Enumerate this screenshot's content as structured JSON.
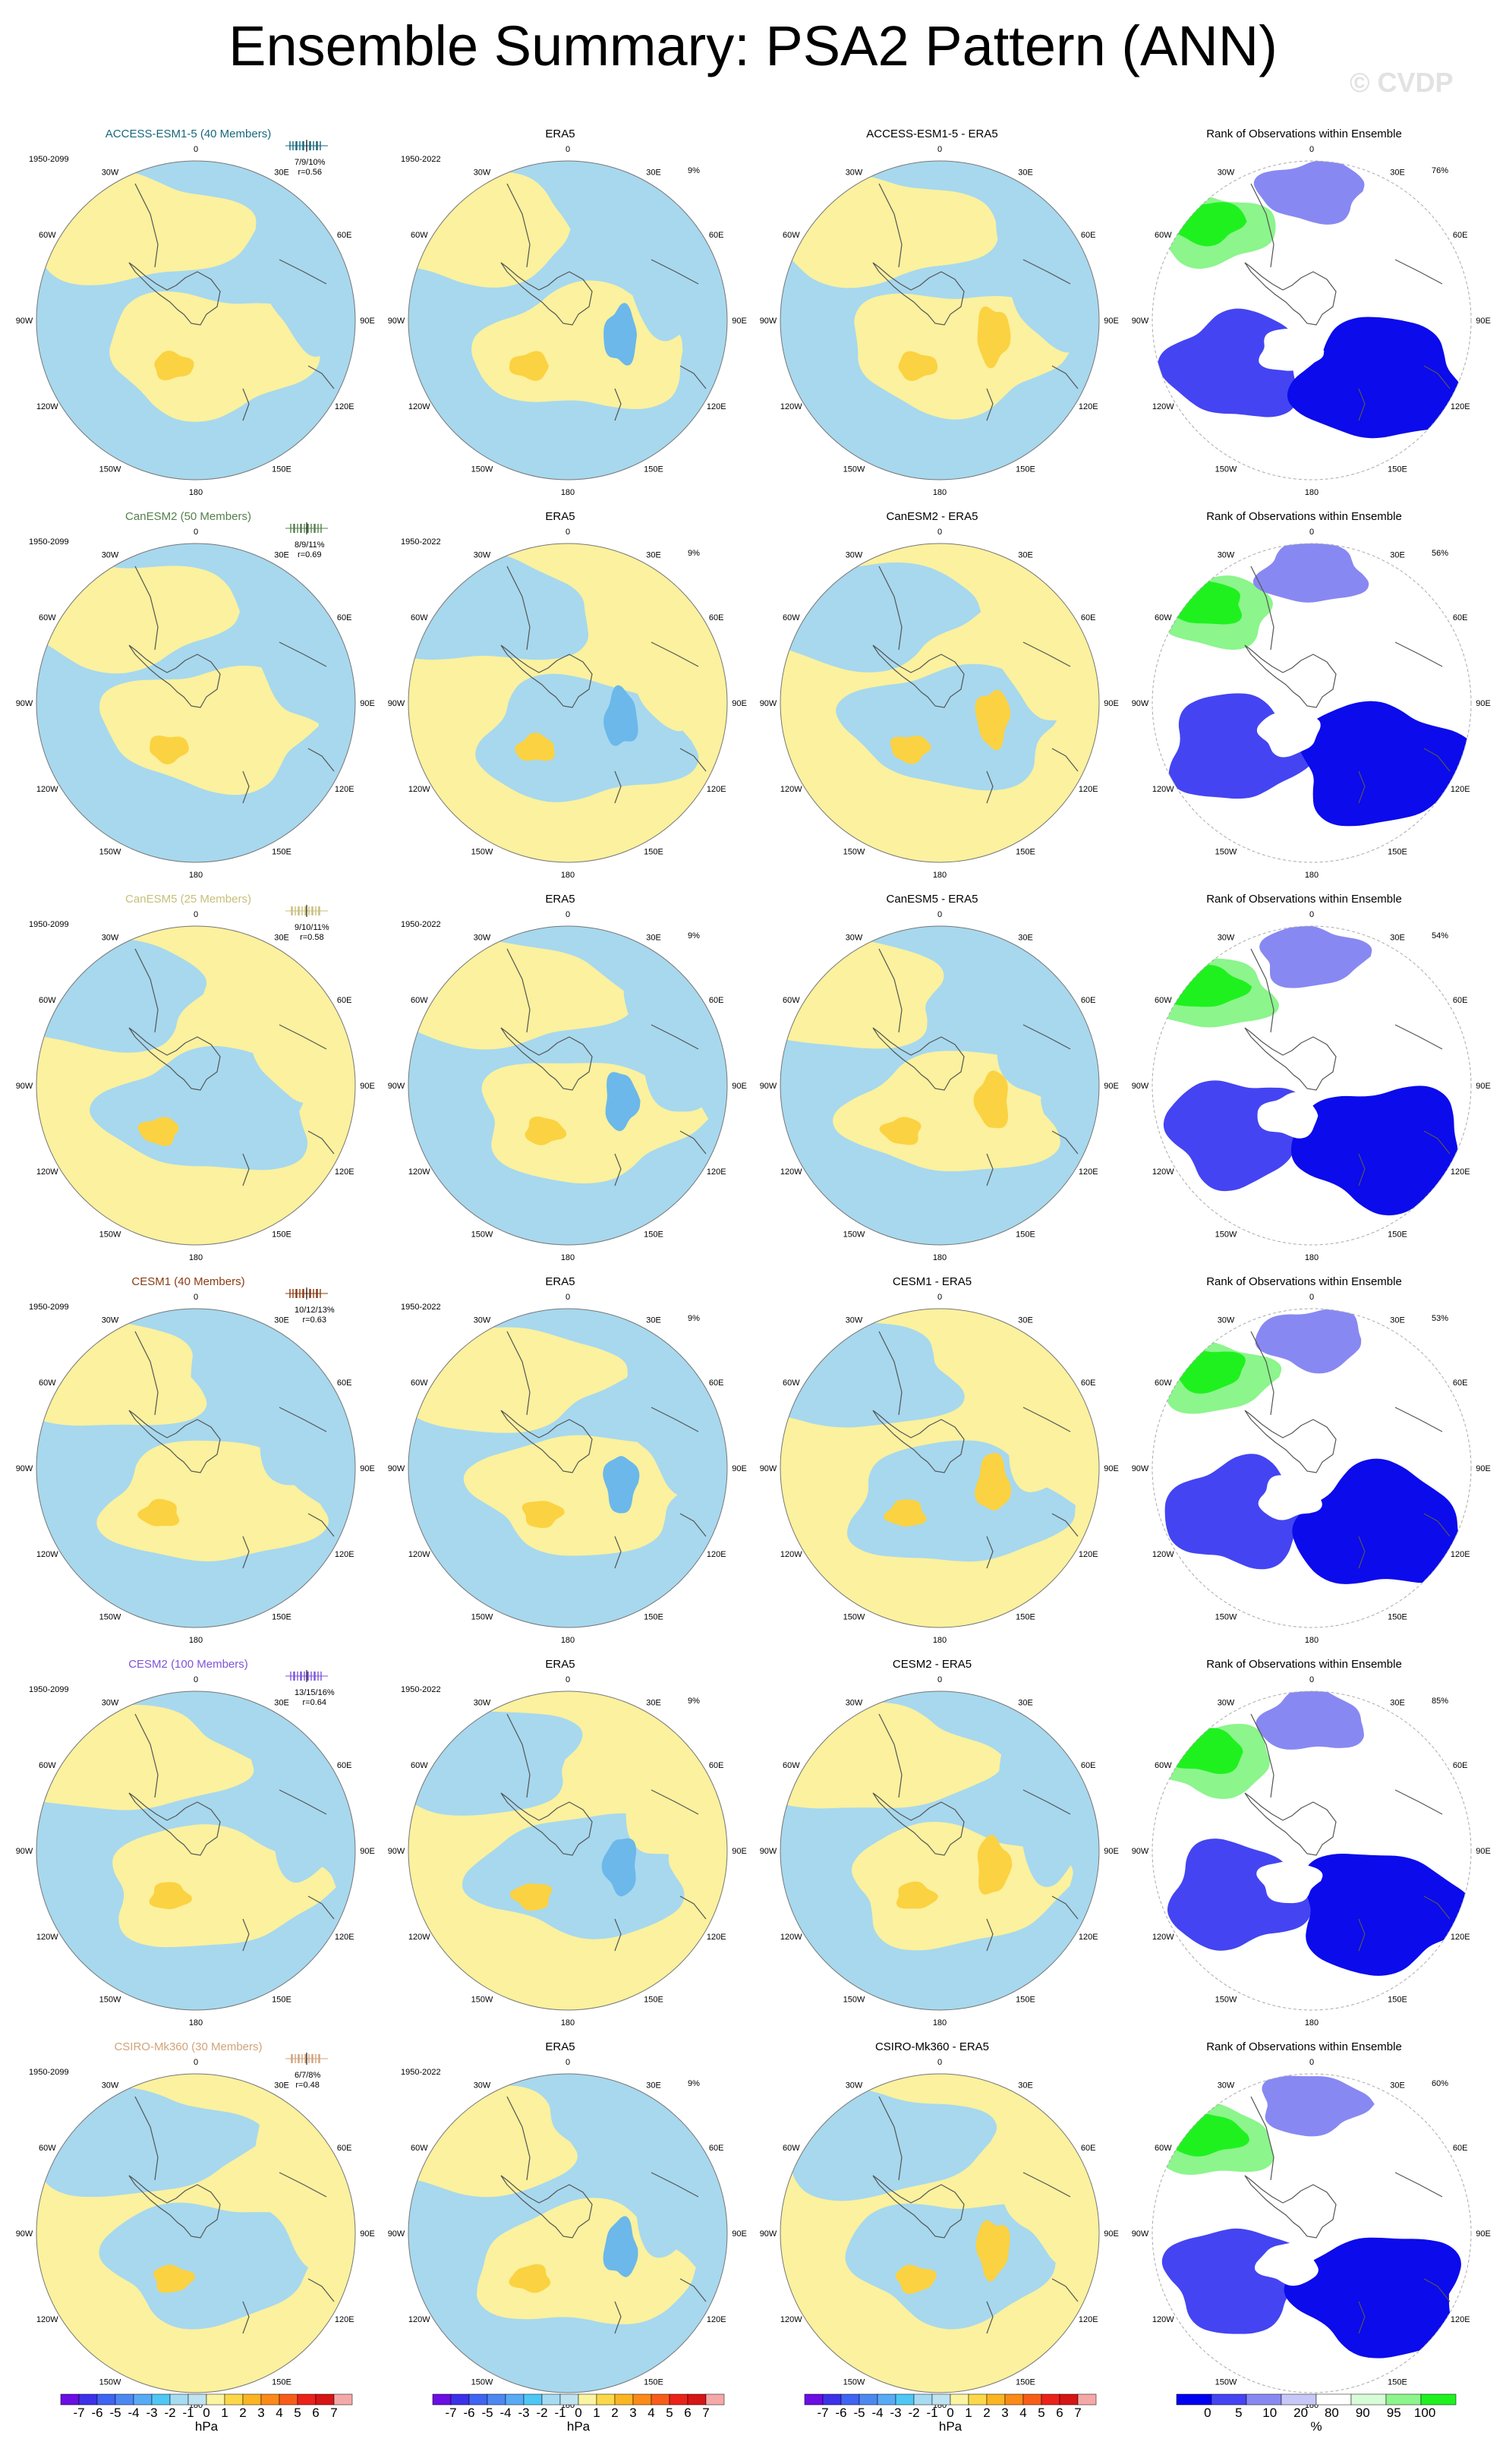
{
  "title": "Ensemble Summary: PSA2 Pattern (ANN)",
  "watermark": "© CVDP",
  "colors": {
    "pos_light": "#fbf19e",
    "pos_mid": "#fbd241",
    "neg_light": "#a7d8ee",
    "neg_mid": "#6cb8ea",
    "rank_high": "#1ff11f",
    "rank_low": "#0b0bec"
  },
  "rows": [
    {
      "model": "ACCESS-ESM1-5 (40 Members)",
      "model_color": "#17677c",
      "range": "1950-2099",
      "pct": "7/9/10%",
      "r": "r=0.56",
      "obs_title": "ERA5",
      "obs_range": "1950-2022",
      "obs_pct": "9%",
      "diff_title": "ACCESS-ESM1-5 - ERA5",
      "rank_title": "Rank of Observations within Ensemble",
      "rank_pct": "76%"
    },
    {
      "model": "CanESM2 (50 Members)",
      "model_color": "#55804c",
      "range": "1950-2099",
      "pct": "8/9/11%",
      "r": "r=0.69",
      "obs_title": "ERA5",
      "obs_range": "1950-2022",
      "obs_pct": "9%",
      "diff_title": "CanESM2 - ERA5",
      "rank_title": "Rank of Observations within Ensemble",
      "rank_pct": "56%"
    },
    {
      "model": "CanESM5 (25 Members)",
      "model_color": "#c7bf7a",
      "range": "1950-2099",
      "pct": "9/10/11%",
      "r": "r=0.58",
      "obs_title": "ERA5",
      "obs_range": "1950-2022",
      "obs_pct": "9%",
      "diff_title": "CanESM5 - ERA5",
      "rank_title": "Rank of Observations within Ensemble",
      "rank_pct": "54%"
    },
    {
      "model": "CESM1 (40 Members)",
      "model_color": "#8a3b12",
      "range": "1950-2099",
      "pct": "10/12/13%",
      "r": "r=0.63",
      "obs_title": "ERA5",
      "obs_range": "1950-2022",
      "obs_pct": "9%",
      "diff_title": "CESM1 - ERA5",
      "rank_title": "Rank of Observations within Ensemble",
      "rank_pct": "53%"
    },
    {
      "model": "CESM2 (100 Members)",
      "model_color": "#7d55d8",
      "range": "1950-2099",
      "pct": "13/15/16%",
      "r": "r=0.64",
      "obs_title": "ERA5",
      "obs_range": "1950-2022",
      "obs_pct": "9%",
      "diff_title": "CESM2 - ERA5",
      "rank_title": "Rank of Observations within Ensemble",
      "rank_pct": "85%"
    },
    {
      "model": "CSIRO-Mk360 (30 Members)",
      "model_color": "#d1a37a",
      "range": "1950-2099",
      "pct": "6/7/8%",
      "r": "r=0.48",
      "obs_title": "ERA5",
      "obs_range": "1950-2022",
      "obs_pct": "9%",
      "diff_title": "CSIRO-Mk360 - ERA5",
      "rank_title": "Rank of Observations within Ensemble",
      "rank_pct": "60%"
    }
  ],
  "lon_labels": [
    "0",
    "30E",
    "60E",
    "90E",
    "120E",
    "150E",
    "180",
    "150W",
    "120W",
    "90W",
    "60W",
    "30W"
  ],
  "colorbar_hpa": {
    "ticks": [
      "-7",
      "-6",
      "-5",
      "-4",
      "-3",
      "-2",
      "-1",
      "0",
      "1",
      "2",
      "3",
      "4",
      "5",
      "6",
      "7"
    ],
    "colors": [
      "#6a0ee3",
      "#3c31e8",
      "#3f64f2",
      "#4d88f2",
      "#57abf5",
      "#4fc7f5",
      "#a6dbf2",
      "#bfe3f0",
      "#fbf4a1",
      "#fbd84a",
      "#fbb522",
      "#fb8a19",
      "#f75d19",
      "#eb2219",
      "#d61515",
      "#f5a8a8"
    ],
    "unit": "hPa"
  },
  "colorbar_rank": {
    "ticks": [
      "0",
      "5",
      "10",
      "20",
      "80",
      "90",
      "95",
      "100"
    ],
    "colors": [
      "#0000f0",
      "#4444f2",
      "#8888f2",
      "#c8c8f7",
      "#ffffff",
      "#d8fbd8",
      "#8cf58c",
      "#1ff11f"
    ],
    "unit": "%"
  }
}
